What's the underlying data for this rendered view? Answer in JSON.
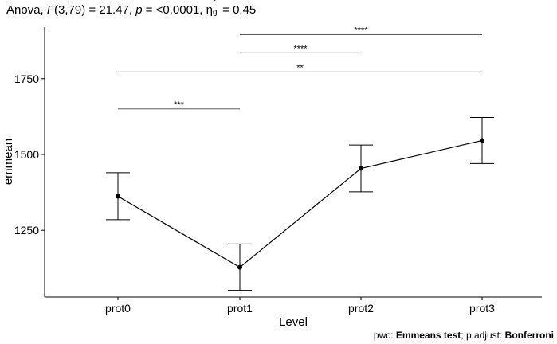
{
  "chart_data": {
    "type": "line",
    "title": {
      "prefix": "Anova, ",
      "stat": "F",
      "stat_args": "(3,79) = 21.47, ",
      "p_label": "p",
      "p_value": " = <0.0001, ",
      "effect_symbol": "η",
      "effect_sub": "g",
      "effect_sup": "2",
      "effect_value": " = 0.45"
    },
    "xlabel": "Level",
    "ylabel": "emmean",
    "categories": [
      "prot0",
      "prot1",
      "prot2",
      "prot3"
    ],
    "series": [
      {
        "values": [
          1362,
          1128,
          1454,
          1546
        ],
        "lower": [
          1285,
          1052,
          1377,
          1470
        ],
        "upper": [
          1440,
          1205,
          1531,
          1622
        ]
      }
    ],
    "yticks": [
      1250,
      1500,
      1750
    ],
    "ylim": [
      1030,
      1920
    ],
    "grid": false,
    "significance": [
      {
        "from": "prot1",
        "to": "prot3",
        "y": 1895,
        "label": "****"
      },
      {
        "from": "prot1",
        "to": "prot2",
        "y": 1835,
        "label": "****"
      },
      {
        "from": "prot0",
        "to": "prot3",
        "y": 1772,
        "label": "**"
      },
      {
        "from": "prot0",
        "to": "prot1",
        "y": 1650,
        "label": "***"
      }
    ]
  },
  "caption": {
    "prefix1": "pwc: ",
    "method": "Emmeans test",
    "prefix2": "; p.adjust: ",
    "adjust": "Bonferroni"
  }
}
